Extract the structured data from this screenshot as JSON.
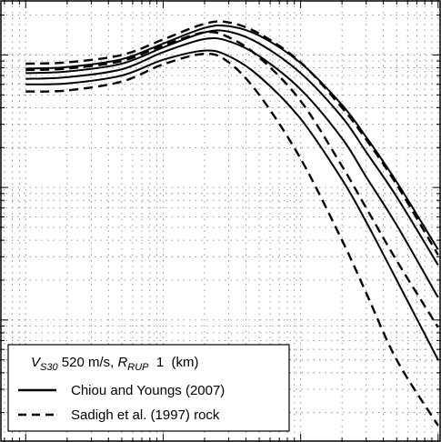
{
  "chart_data": {
    "type": "line",
    "x_scale": "log",
    "y_scale": "log",
    "grid": true,
    "legend_position": "bottom-left",
    "x_decades": [
      "1e-2",
      "1e-1",
      "1e0",
      "1e1"
    ],
    "legend": {
      "vs30_symbol": "V",
      "vs30_sub": "S30",
      "vs30_value": " 520 m/s, ",
      "rrup_symbol": "R",
      "rrup_sub": "RUP",
      "rrup_value": "  1  (km)"
    },
    "series": [
      {
        "name": "Chiou and Youngs (2007)",
        "dash": "solid",
        "curves": [
          {
            "x": [
              0.01,
              0.02,
              0.05,
              0.1,
              0.2,
              0.3,
              0.5,
              1,
              2,
              3,
              5,
              10
            ],
            "y": [
              0.6,
              0.61,
              0.7,
              0.92,
              1.08,
              0.98,
              0.69,
              0.33,
              0.115,
              0.055,
              0.02,
              0.005
            ]
          },
          {
            "x": [
              0.01,
              0.02,
              0.05,
              0.1,
              0.2,
              0.3,
              0.5,
              1,
              2,
              3,
              5,
              10
            ],
            "y": [
              0.66,
              0.68,
              0.78,
              1.05,
              1.32,
              1.27,
              0.98,
              0.55,
              0.235,
              0.12,
              0.052,
              0.0148
            ]
          },
          {
            "x": [
              0.01,
              0.02,
              0.05,
              0.1,
              0.2,
              0.3,
              0.5,
              1,
              2,
              3,
              5,
              10
            ],
            "y": [
              0.73,
              0.75,
              0.86,
              1.14,
              1.48,
              1.5,
              1.22,
              0.73,
              0.34,
              0.185,
              0.085,
              0.026
            ]
          },
          {
            "x": [
              0.01,
              0.02,
              0.05,
              0.1,
              0.2,
              0.3,
              0.5,
              1,
              2,
              3,
              5,
              10
            ],
            "y": [
              0.79,
              0.81,
              0.93,
              1.22,
              1.6,
              1.65,
              1.4,
              0.87,
              0.42,
              0.24,
              0.11,
              0.034
            ]
          }
        ]
      },
      {
        "name": "Sadigh et al. (1997) rock",
        "dash": "dashed",
        "curves": [
          {
            "x": [
              0.01,
              0.02,
              0.05,
              0.1,
              0.2,
              0.3,
              0.5,
              1,
              2,
              3,
              5,
              10
            ],
            "y": [
              0.53,
              0.54,
              0.63,
              0.85,
              1.02,
              0.88,
              0.5,
              0.165,
              0.04,
              0.016,
              0.005,
              0.0016
            ]
          },
          {
            "x": [
              0.01,
              0.02,
              0.05,
              0.1,
              0.2,
              0.3,
              0.5,
              1,
              2,
              3,
              5,
              10
            ],
            "y": [
              0.77,
              0.79,
              0.9,
              1.18,
              1.48,
              1.36,
              0.96,
              0.45,
              0.145,
              0.07,
              0.028,
              0.0088
            ]
          },
          {
            "x": [
              0.01,
              0.02,
              0.05,
              0.1,
              0.2,
              0.3,
              0.5,
              1,
              2,
              3,
              5,
              10
            ],
            "y": [
              0.86,
              0.88,
              1.0,
              1.31,
              1.72,
              1.76,
              1.45,
              0.88,
              0.4,
              0.23,
              0.105,
              0.031
            ]
          }
        ]
      }
    ]
  }
}
